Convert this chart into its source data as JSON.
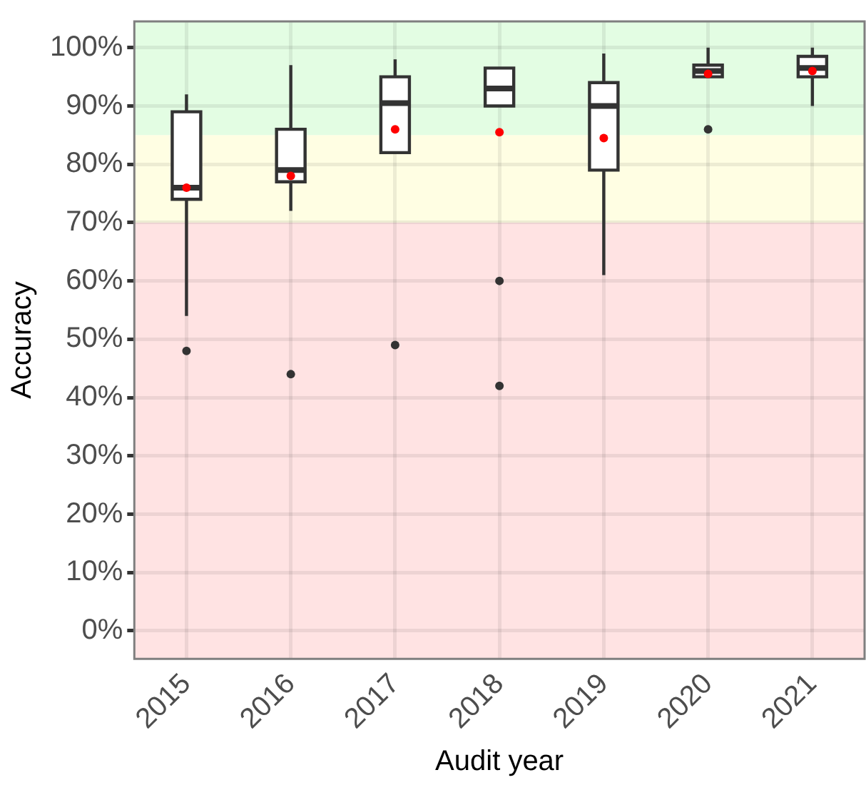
{
  "chart_data": {
    "type": "box",
    "xlabel": "Audit year",
    "ylabel": "Accuracy",
    "categories": [
      "2015",
      "2016",
      "2017",
      "2018",
      "2019",
      "2020",
      "2021"
    ],
    "ylim": [
      -4.8,
      104.5
    ],
    "yticks": [
      {
        "value": 0,
        "label": "0%"
      },
      {
        "value": 10,
        "label": "10%"
      },
      {
        "value": 20,
        "label": "20%"
      },
      {
        "value": 30,
        "label": "30%"
      },
      {
        "value": 40,
        "label": "40%"
      },
      {
        "value": 50,
        "label": "50%"
      },
      {
        "value": 60,
        "label": "60%"
      },
      {
        "value": 70,
        "label": "70%"
      },
      {
        "value": 80,
        "label": "80%"
      },
      {
        "value": 90,
        "label": "90%"
      },
      {
        "value": 100,
        "label": "100%"
      }
    ],
    "grid": true,
    "legend": false,
    "bands": [
      {
        "axis": "y",
        "from": -4.8,
        "to": 70,
        "color": "#ffe3e3"
      },
      {
        "axis": "y",
        "from": 70,
        "to": 85,
        "color": "#fffee3"
      },
      {
        "axis": "y",
        "from": 85,
        "to": 104.5,
        "color": "#e3fde3"
      }
    ],
    "series": [
      {
        "color": "#333333",
        "boxes": [
          {
            "low": 54,
            "q1": 74,
            "median": 76,
            "q3": 89,
            "high": 92,
            "mean": 76,
            "outliers": [
              48
            ]
          },
          {
            "low": 72,
            "q1": 77,
            "median": 79,
            "q3": 86,
            "high": 97,
            "mean": 78,
            "outliers": [
              44
            ]
          },
          {
            "low": 82,
            "q1": 82,
            "median": 90.5,
            "q3": 95,
            "high": 98,
            "mean": 86,
            "outliers": [
              49
            ]
          },
          {
            "low": 90,
            "q1": 90,
            "median": 93,
            "q3": 96.5,
            "high": 96.5,
            "mean": 85.5,
            "outliers": [
              60,
              42
            ]
          },
          {
            "low": 61,
            "q1": 79,
            "median": 90,
            "q3": 94,
            "high": 99,
            "mean": 84.5
          },
          {
            "low": 95,
            "q1": 95,
            "median": 96,
            "q3": 97,
            "high": 100,
            "mean": 95.5,
            "outliers": [
              86
            ]
          },
          {
            "low": 90,
            "q1": 95,
            "median": 96.5,
            "q3": 98.5,
            "high": 100,
            "mean": 96
          }
        ]
      }
    ]
  }
}
